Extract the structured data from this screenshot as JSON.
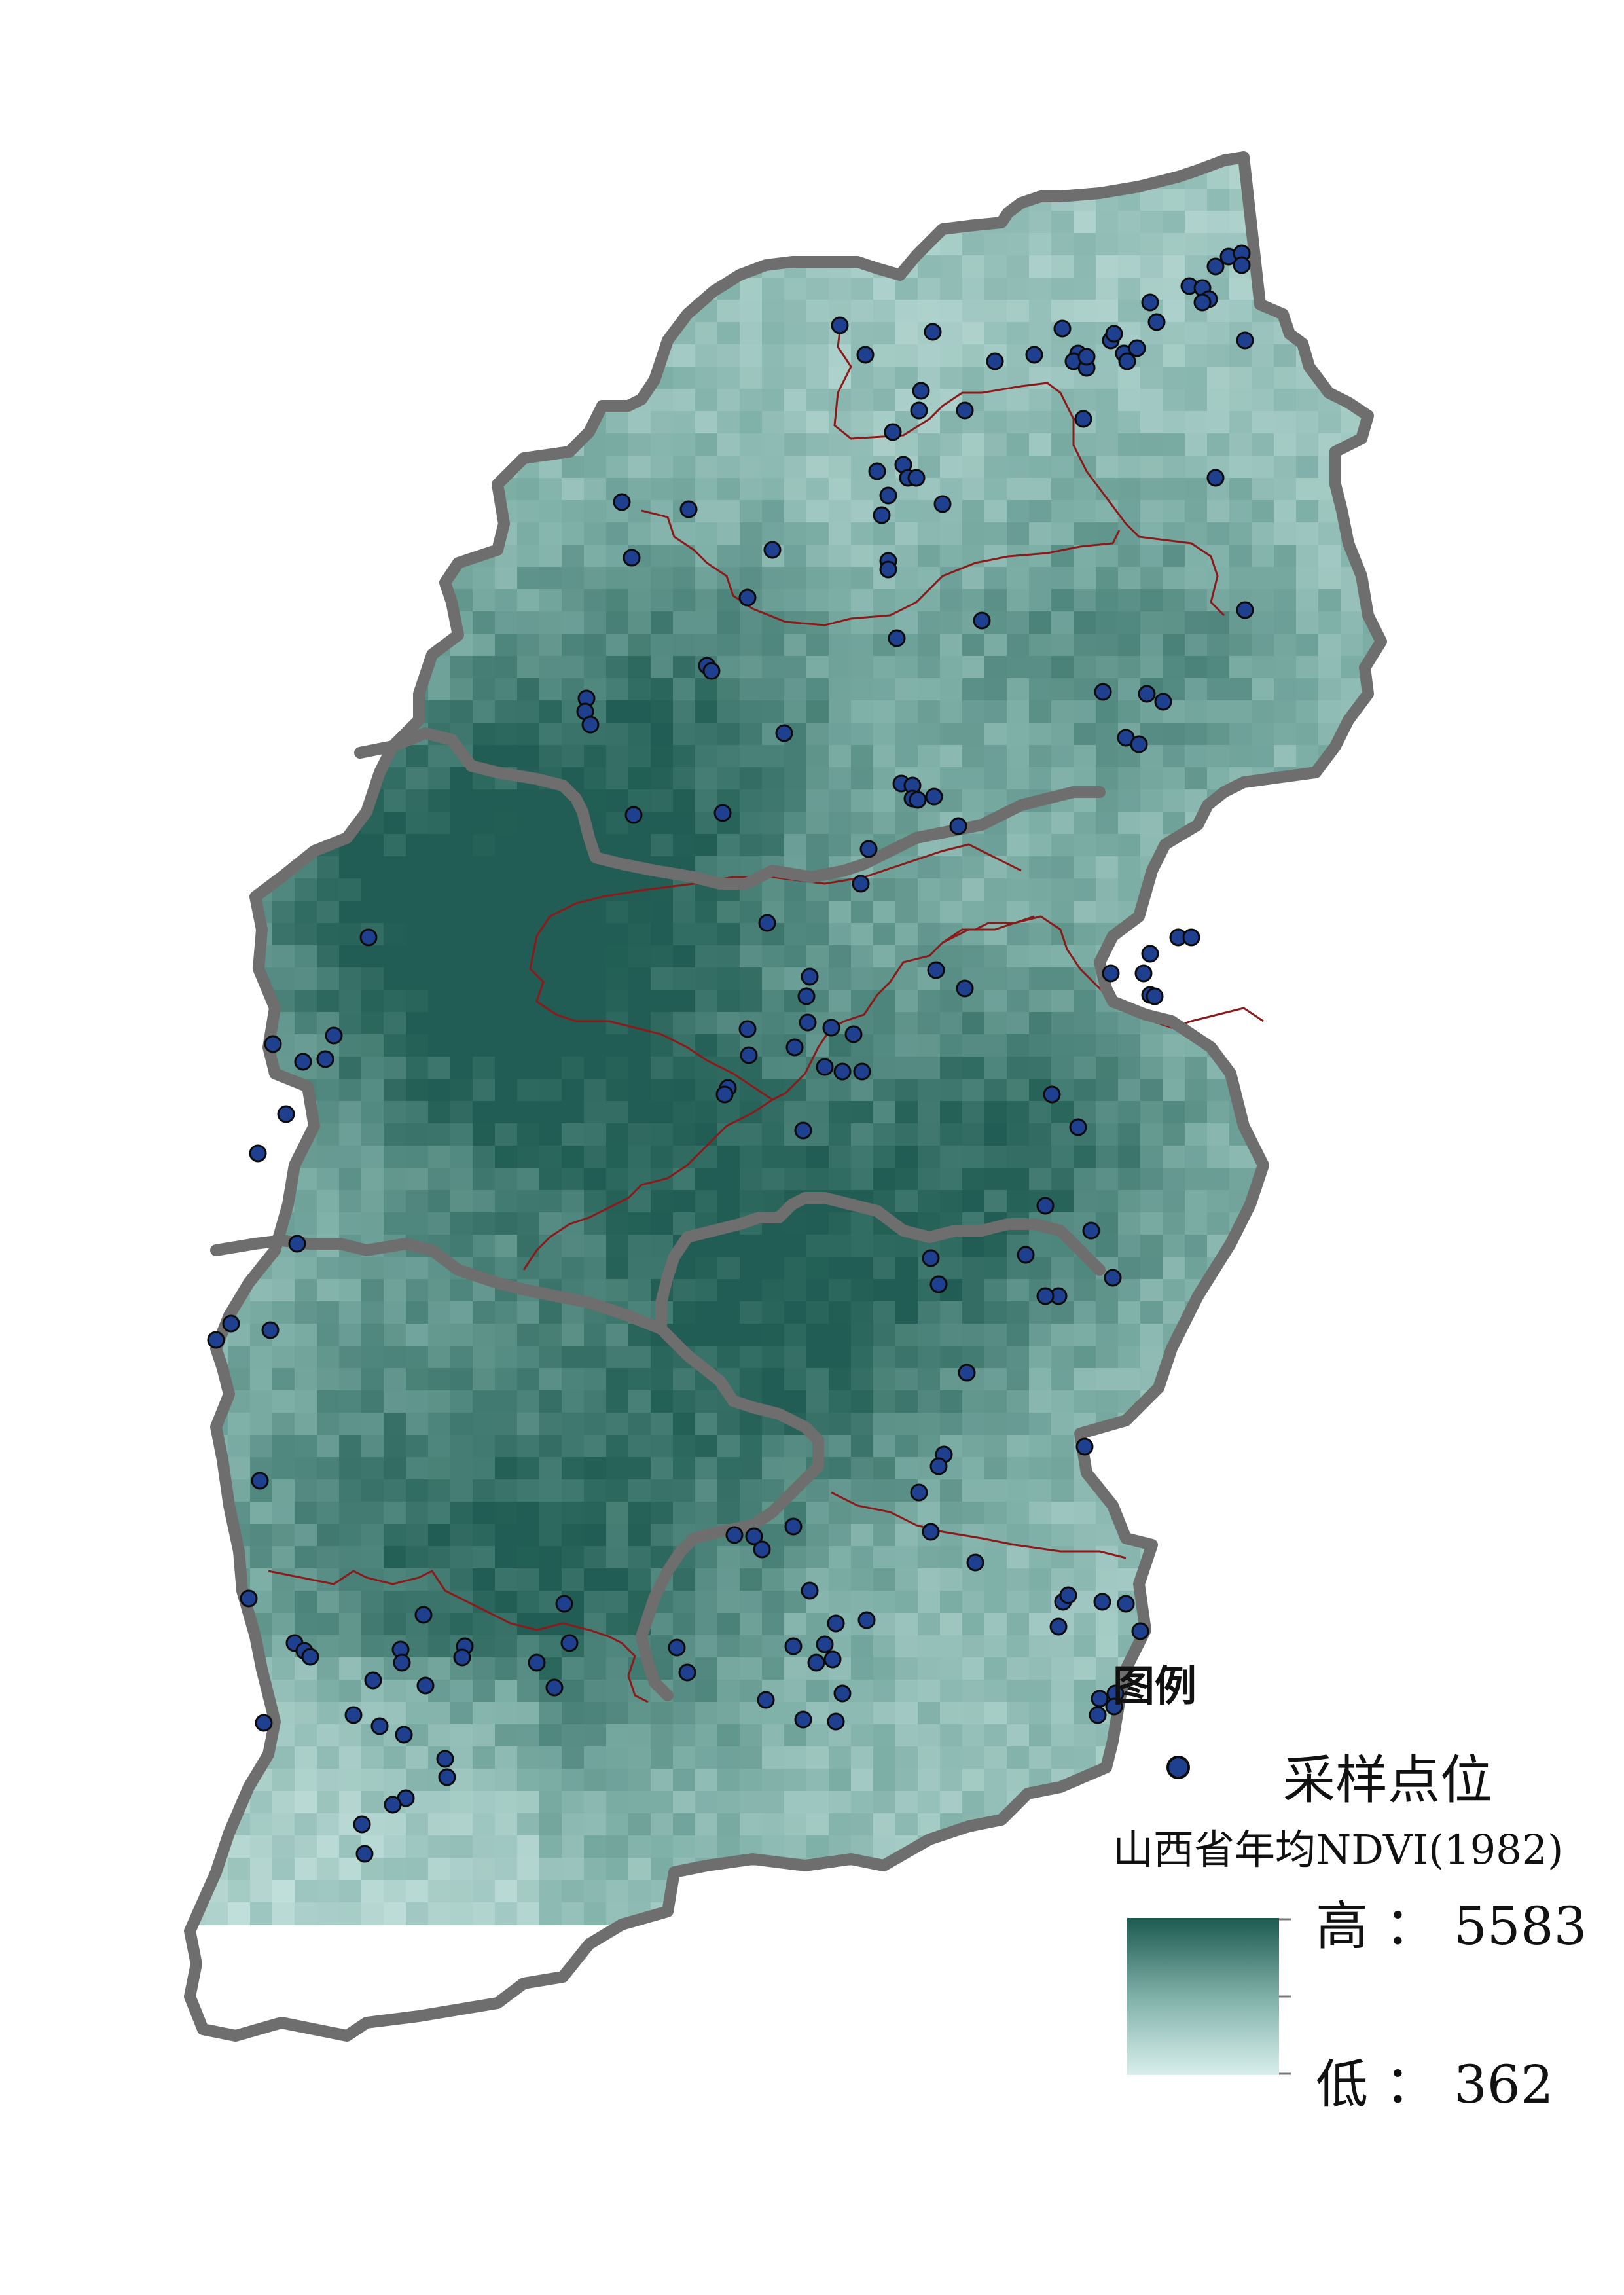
{
  "legend": {
    "title": "图例",
    "point_label": "采样点位",
    "raster_title": "山西省年均NDVI(1982)",
    "high_label": "高 ： 5583",
    "low_label": "低 ： 362"
  },
  "colors": {
    "ndvi_high": "#1d5a50",
    "ndvi_mid": "#7fb0a8",
    "ndvi_low": "#d8efec",
    "province_outline": "#6e6e6e",
    "county_line": "#8b1a1a",
    "sample_point_fill": "#1f3f8f",
    "sample_point_stroke": "#0b0b0b"
  },
  "icons": {
    "sample_point": "filled-circle-icon"
  }
}
